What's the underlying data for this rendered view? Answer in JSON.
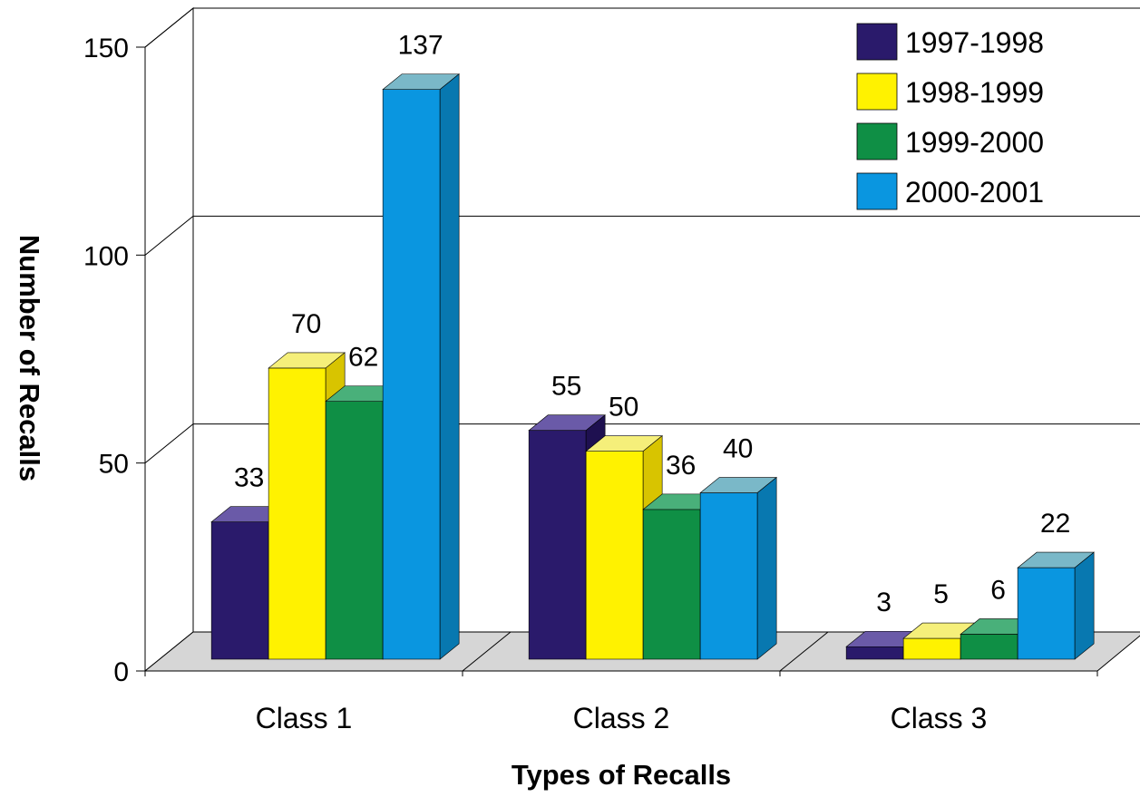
{
  "chart_data": {
    "type": "bar",
    "title": "",
    "xlabel": "Types of Recalls",
    "ylabel": "Number of Recalls",
    "categories": [
      "Class 1",
      "Class 2",
      "Class 3"
    ],
    "series": [
      {
        "name": "1997-1998",
        "values": [
          33,
          55,
          3
        ],
        "color": "#2a1a6b",
        "top_color": "#6a5aa8",
        "side_color": "#1e1050"
      },
      {
        "name": "1998-1999",
        "values": [
          70,
          50,
          5
        ],
        "color": "#fff200",
        "top_color": "#f5ef7a",
        "side_color": "#d8c400"
      },
      {
        "name": "1999-2000",
        "values": [
          62,
          36,
          6
        ],
        "color": "#0f8f45",
        "top_color": "#49b07a",
        "side_color": "#0a6e34"
      },
      {
        "name": "2000-2001",
        "values": [
          137,
          40,
          22
        ],
        "color": "#0a96e0",
        "top_color": "#7ab8c8",
        "side_color": "#0878b0"
      }
    ],
    "yticks": [
      "0",
      "50",
      "100",
      "150"
    ],
    "ylim": [
      0,
      150
    ],
    "grid": true,
    "legend_position": "top-right",
    "three_d": true
  }
}
